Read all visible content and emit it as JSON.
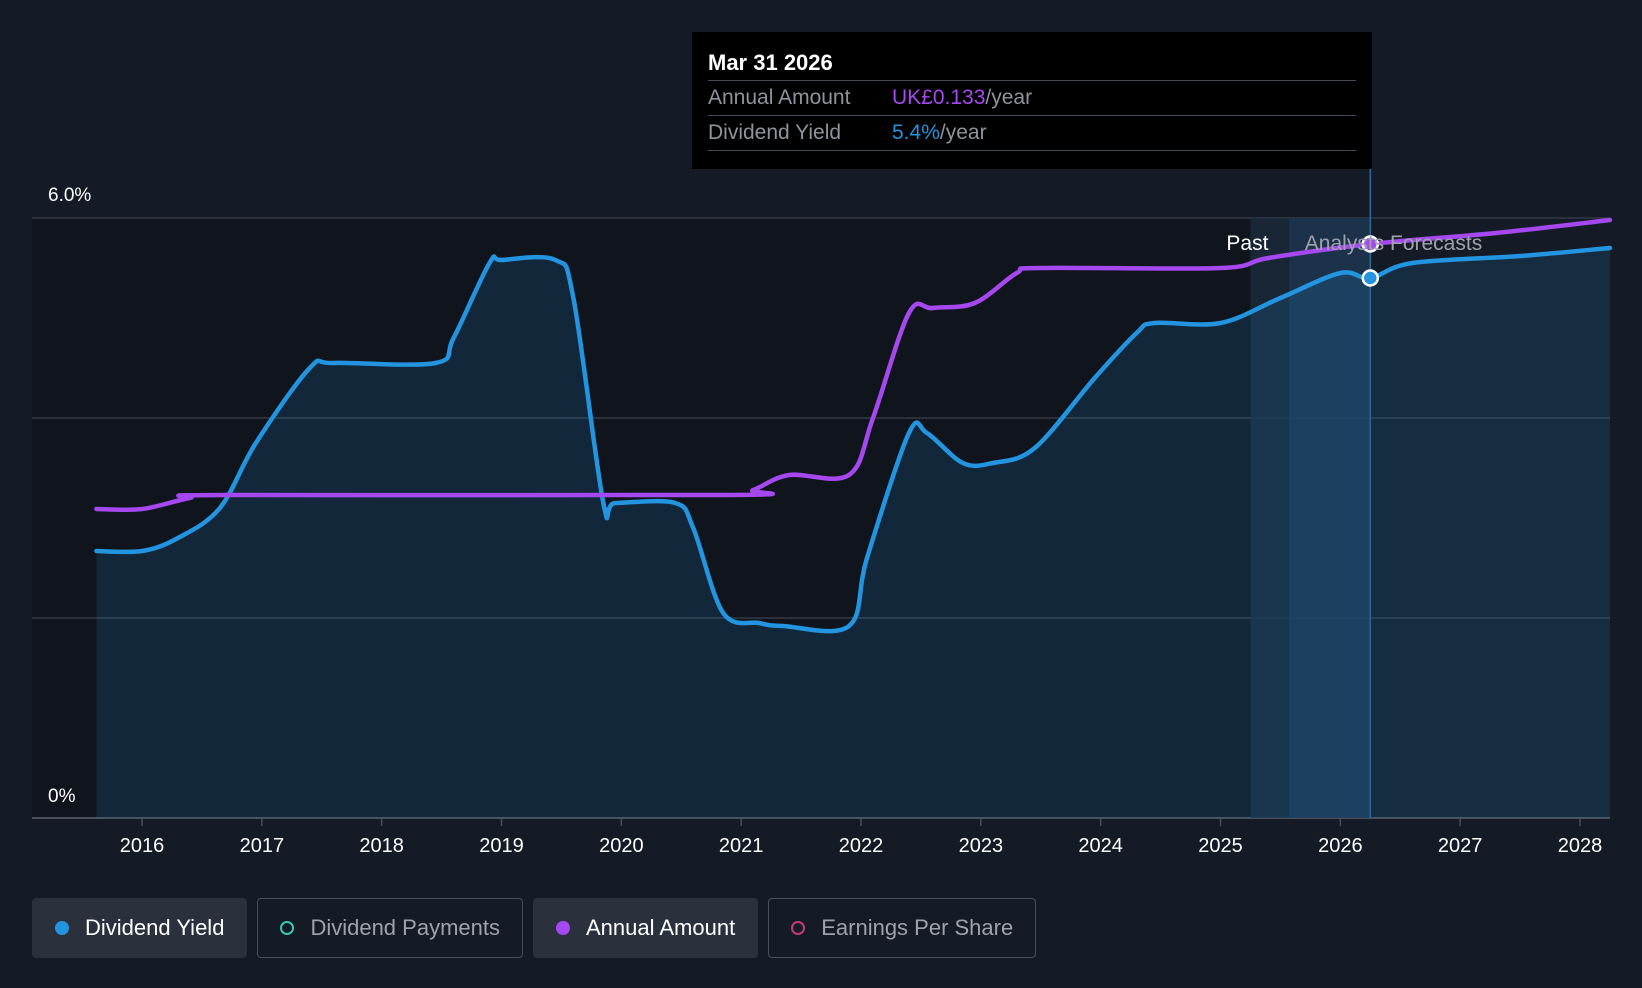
{
  "chart_data": {
    "type": "line",
    "y_axis_labels": [
      "6.0%",
      "0%"
    ],
    "x_tick_labels": [
      "2016",
      "2017",
      "2018",
      "2019",
      "2020",
      "2021",
      "2022",
      "2023",
      "2024",
      "2025",
      "2026",
      "2027",
      "2028"
    ],
    "ylim": [
      0,
      6.0
    ],
    "grid": true,
    "region_labels": {
      "past": "Past",
      "forecast": "Analysts Forecasts"
    },
    "series": [
      {
        "name": "Dividend Yield",
        "color": "#2394df",
        "unit": "%",
        "points": [
          [
            2015.62,
            2.67
          ],
          [
            2016.0,
            2.67
          ],
          [
            2016.3,
            2.8
          ],
          [
            2016.65,
            3.1
          ],
          [
            2016.95,
            3.75
          ],
          [
            2017.4,
            4.5
          ],
          [
            2017.6,
            4.55
          ],
          [
            2018.45,
            4.55
          ],
          [
            2018.6,
            4.8
          ],
          [
            2018.9,
            5.55
          ],
          [
            2019.0,
            5.58
          ],
          [
            2019.45,
            5.58
          ],
          [
            2019.6,
            5.2
          ],
          [
            2019.85,
            3.15
          ],
          [
            2019.95,
            3.15
          ],
          [
            2020.45,
            3.15
          ],
          [
            2020.6,
            2.9
          ],
          [
            2020.85,
            2.05
          ],
          [
            2021.15,
            1.95
          ],
          [
            2021.35,
            1.92
          ],
          [
            2021.9,
            1.92
          ],
          [
            2022.05,
            2.6
          ],
          [
            2022.4,
            3.85
          ],
          [
            2022.55,
            3.85
          ],
          [
            2022.85,
            3.55
          ],
          [
            2023.1,
            3.55
          ],
          [
            2023.45,
            3.7
          ],
          [
            2023.95,
            4.4
          ],
          [
            2024.3,
            4.85
          ],
          [
            2024.45,
            4.95
          ],
          [
            2025.0,
            4.95
          ],
          [
            2025.5,
            5.2
          ],
          [
            2026.0,
            5.45
          ],
          [
            2026.25,
            5.4
          ],
          [
            2026.6,
            5.55
          ],
          [
            2027.5,
            5.62
          ],
          [
            2028.25,
            5.7
          ]
        ]
      },
      {
        "name": "Annual Amount",
        "color": "#a548f0",
        "unit": "UK£",
        "points": [
          [
            2015.62,
            3.09
          ],
          [
            2016.0,
            3.09
          ],
          [
            2016.4,
            3.2
          ],
          [
            2016.7,
            3.23
          ],
          [
            2020.9,
            3.23
          ],
          [
            2021.1,
            3.28
          ],
          [
            2021.4,
            3.43
          ],
          [
            2021.9,
            3.43
          ],
          [
            2022.1,
            4.0
          ],
          [
            2022.4,
            5.05
          ],
          [
            2022.6,
            5.1
          ],
          [
            2022.95,
            5.15
          ],
          [
            2023.3,
            5.45
          ],
          [
            2023.5,
            5.5
          ],
          [
            2025.0,
            5.5
          ],
          [
            2025.4,
            5.6
          ],
          [
            2026.25,
            5.74
          ],
          [
            2027.3,
            5.85
          ],
          [
            2028.25,
            5.98
          ]
        ]
      }
    ],
    "tooltip": {
      "date": "Mar 31 2026",
      "rows": [
        {
          "label": "Annual Amount",
          "value": "UK£0.133",
          "suffix": "/year",
          "color": "#a548f0"
        },
        {
          "label": "Dividend Yield",
          "value": "5.4%",
          "suffix": "/year",
          "color": "#2394df"
        }
      ]
    },
    "legend": [
      {
        "label": "Dividend Yield",
        "color": "#2394df",
        "active": true
      },
      {
        "label": "Dividend Payments",
        "color": "#3fc1b0",
        "active": false
      },
      {
        "label": "Annual Amount",
        "color": "#a548f0",
        "active": true
      },
      {
        "label": "Earnings Per Share",
        "color": "#c43b76",
        "active": false
      }
    ]
  }
}
